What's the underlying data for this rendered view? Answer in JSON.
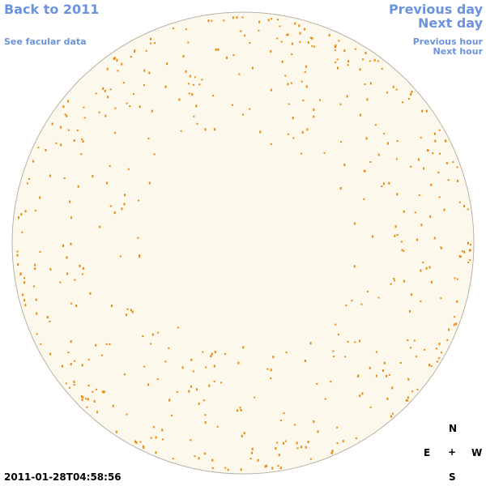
{
  "links": {
    "back": "Back to 2011",
    "facular": "See facular data",
    "previous_day": "Previous day",
    "next_day": "Next day",
    "previous_hour": "Previous hour",
    "next_hour": "Next hour"
  },
  "timestamp": "2011-01-28T04:58:56",
  "compass": {
    "north": "N",
    "east": "E",
    "center": "+",
    "west": "W",
    "south": "S"
  }
}
